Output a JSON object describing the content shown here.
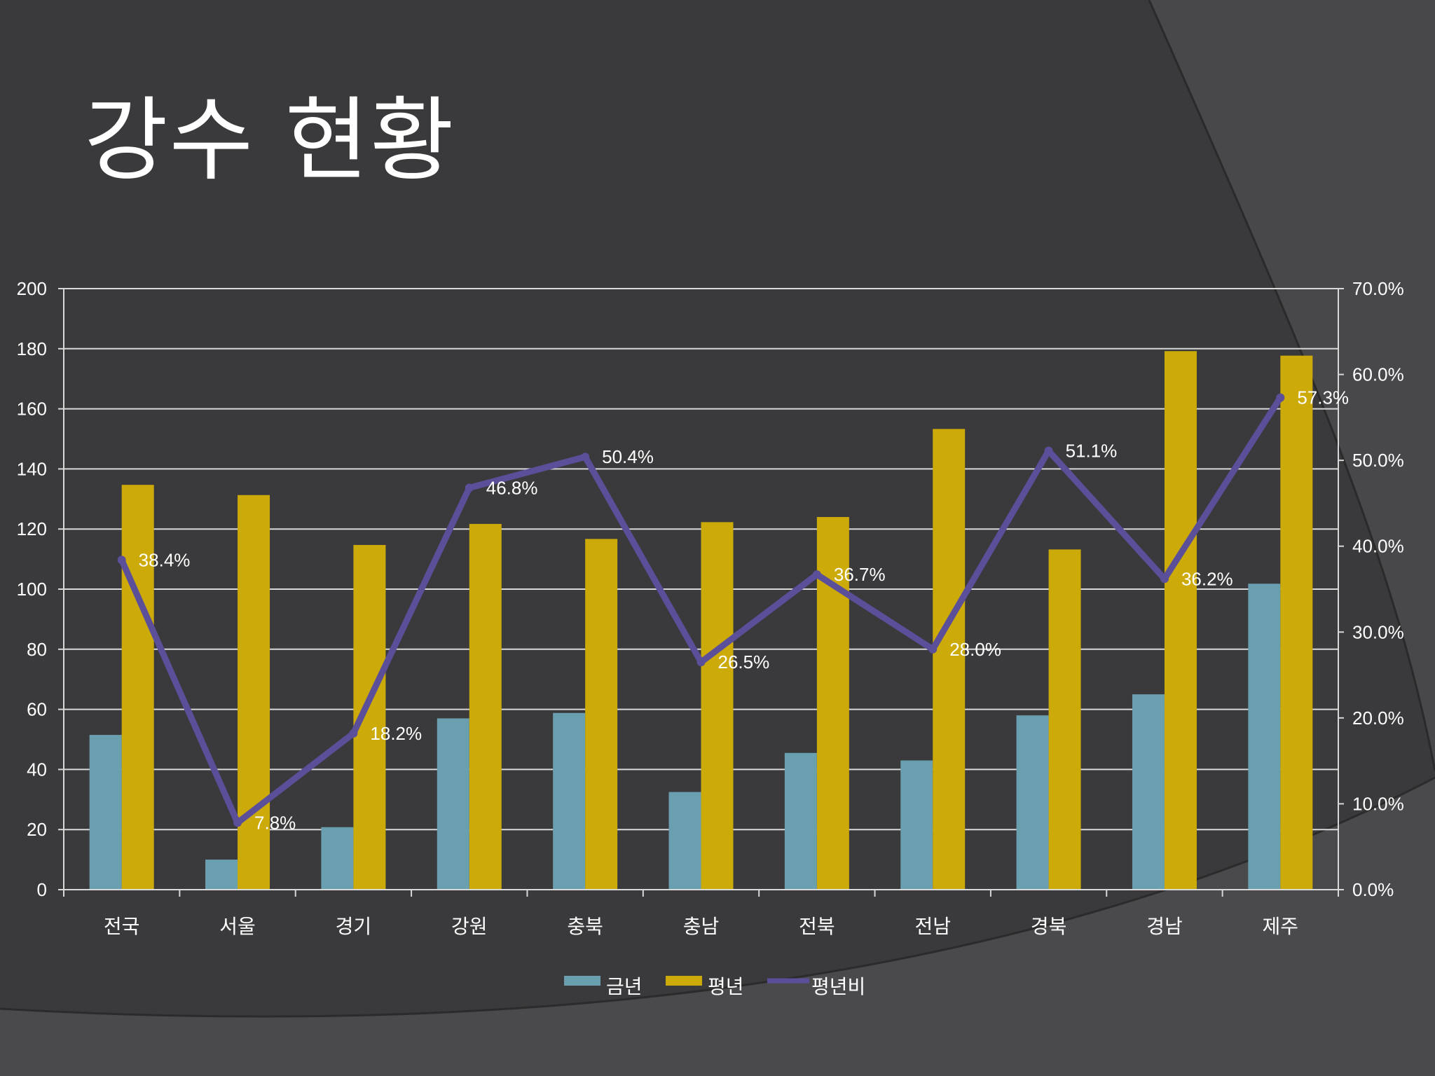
{
  "slide": {
    "title": "강수 현황"
  },
  "colors": {
    "background": "#3a3a3c",
    "this_year": "#6a9fb0",
    "normal_year": "#cbaa0a",
    "ratio_line": "#5b4f9a",
    "grid": "#d8d8d8",
    "text": "#ffffff"
  },
  "chart_data": {
    "type": "bar",
    "categories": [
      "전국",
      "서울",
      "경기",
      "강원",
      "충북",
      "충남",
      "전북",
      "전남",
      "경북",
      "경남",
      "제주"
    ],
    "series": [
      {
        "name": "금년",
        "type": "bar",
        "axis": "left",
        "values": [
          51.5,
          10,
          20.8,
          57,
          58.8,
          32.5,
          45.5,
          43,
          58,
          65,
          101.8
        ]
      },
      {
        "name": "평년",
        "type": "bar",
        "axis": "left",
        "values": [
          134.7,
          131.3,
          114.7,
          121.7,
          116.7,
          122.3,
          124,
          153.3,
          113.2,
          179.2,
          177.7
        ]
      },
      {
        "name": "평년비",
        "type": "line",
        "axis": "right",
        "values": [
          38.4,
          7.8,
          18.2,
          46.8,
          50.4,
          26.5,
          36.7,
          28.0,
          51.1,
          36.2,
          57.3
        ],
        "labels": [
          "38.4%",
          "7.8%",
          "18.2%",
          "46.8%",
          "50.4%",
          "26.5%",
          "36.7%",
          "28.0%",
          "51.1%",
          "36.2%",
          "57.3%"
        ]
      }
    ],
    "ylim": [
      0,
      200
    ],
    "yticks": [
      "0",
      "20",
      "40",
      "60",
      "80",
      "100",
      "120",
      "140",
      "160",
      "180",
      "200"
    ],
    "y2lim": [
      0,
      70
    ],
    "y2ticks": [
      "0.0%",
      "10.0%",
      "20.0%",
      "30.0%",
      "40.0%",
      "50.0%",
      "60.0%",
      "70.0%"
    ],
    "grid": true,
    "legend_position": "bottom",
    "legend": [
      "금년",
      "평년",
      "평년비"
    ]
  }
}
